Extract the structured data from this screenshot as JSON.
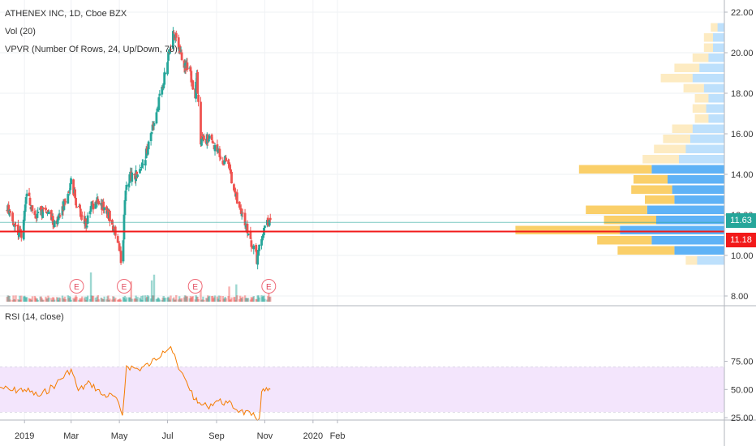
{
  "legend": {
    "symbol": "ATHENEX INC, 1D, Cboe BZX",
    "volume": "Vol (20)",
    "vpvr": "VPVR (Number Of Rows, 24, Up/Down, 70)",
    "rsi": "RSI (14, close)"
  },
  "price_tags": {
    "last": "11.63",
    "line": "11.18"
  },
  "colors": {
    "up": "#26a69a",
    "down": "#ef5350",
    "hline": "#f21a1a",
    "last_tag": "#26a69a",
    "line_tag": "#f21a1a",
    "rsi_line": "#f57c00",
    "rsi_band": "#f3e5fc",
    "vp_up": "#42a5f5",
    "vp_down": "#f9c74f"
  },
  "chart_data": [
    {
      "type": "candlestick",
      "title": "ATHENEX INC, 1D, Cboe BZX",
      "x_ticks": [
        "2019",
        "Mar",
        "May",
        "Jul",
        "Sep",
        "Nov",
        "2020",
        "Feb"
      ],
      "y_ticks": [
        "8.00",
        "10.00",
        "12.00",
        "14.00",
        "16.00",
        "18.00",
        "20.00",
        "22.00"
      ],
      "ylim": [
        7.8,
        22.6
      ],
      "horizontal_line": 11.18,
      "last_price": 11.63,
      "earnings_markers": [
        "E",
        "E",
        "E",
        "E"
      ],
      "price_path": [
        [
          "2018-12-10",
          12.3
        ],
        [
          "2018-12-20",
          11.4
        ],
        [
          "2018-12-28",
          10.9
        ],
        [
          "2019-01-03",
          13.0
        ],
        [
          "2019-01-15",
          12.0
        ],
        [
          "2019-01-28",
          12.3
        ],
        [
          "2019-02-10",
          11.4
        ],
        [
          "2019-02-22",
          12.8
        ],
        [
          "2019-03-01",
          13.6
        ],
        [
          "2019-03-10",
          12.3
        ],
        [
          "2019-03-20",
          11.6
        ],
        [
          "2019-03-28",
          12.4
        ],
        [
          "2019-04-05",
          12.7
        ],
        [
          "2019-04-18",
          12.0
        ],
        [
          "2019-04-25",
          11.2
        ],
        [
          "2019-05-02",
          10.0
        ],
        [
          "2019-05-05",
          9.5
        ],
        [
          "2019-05-08",
          12.9
        ],
        [
          "2019-05-14",
          13.9
        ],
        [
          "2019-05-28",
          14.0
        ],
        [
          "2019-06-10",
          16.0
        ],
        [
          "2019-06-22",
          18.0
        ],
        [
          "2019-07-03",
          20.0
        ],
        [
          "2019-07-08",
          21.0
        ],
        [
          "2019-07-14",
          20.6
        ],
        [
          "2019-07-20",
          19.5
        ],
        [
          "2019-07-30",
          19.0
        ],
        [
          "2019-08-05",
          17.7
        ],
        [
          "2019-08-07",
          18.9
        ],
        [
          "2019-08-12",
          15.7
        ],
        [
          "2019-08-22",
          15.8
        ],
        [
          "2019-09-01",
          15.1
        ],
        [
          "2019-09-15",
          14.5
        ],
        [
          "2019-09-25",
          13.0
        ],
        [
          "2019-10-08",
          11.5
        ],
        [
          "2019-10-18",
          10.3
        ],
        [
          "2019-10-22",
          9.8
        ],
        [
          "2019-10-28",
          11.0
        ],
        [
          "2019-11-05",
          11.7
        ],
        [
          "2019-11-08",
          11.63
        ]
      ]
    },
    {
      "type": "line",
      "title": "RSI (14, close)",
      "y_ticks": [
        "25.00",
        "50.00",
        "75.00"
      ],
      "ylim": [
        16,
        96
      ],
      "band": [
        30,
        70
      ],
      "x": [
        "2018-12-01",
        "2018-12-15",
        "2019-01-01",
        "2019-01-20",
        "2019-02-10",
        "2019-03-01",
        "2019-03-10",
        "2019-03-25",
        "2019-04-10",
        "2019-04-25",
        "2019-05-05",
        "2019-05-10",
        "2019-05-25",
        "2019-06-10",
        "2019-06-25",
        "2019-07-05",
        "2019-07-15",
        "2019-07-25",
        "2019-08-05",
        "2019-08-08",
        "2019-08-20",
        "2019-09-01",
        "2019-09-15",
        "2019-10-01",
        "2019-10-15",
        "2019-10-25",
        "2019-10-28",
        "2019-11-05",
        "2019-11-08"
      ],
      "values": [
        52,
        49,
        50,
        44,
        55,
        68,
        49,
        56,
        45,
        44,
        27,
        71,
        68,
        73,
        84,
        88,
        68,
        57,
        41,
        38,
        35,
        40,
        38,
        31,
        27,
        24,
        48,
        49,
        50
      ]
    },
    {
      "type": "volume_profile",
      "title": "VPVR (Number Of Rows, 24, Up/Down, 70)",
      "price_bins": [
        9.5,
        10.0,
        10.5,
        11.0,
        11.5,
        12.0,
        12.5,
        13.0,
        13.5,
        14.0,
        14.5,
        15.0,
        15.5,
        16.0,
        16.5,
        17.0,
        17.5,
        18.0,
        18.5,
        19.0,
        19.5,
        20.0,
        20.5,
        21.0
      ],
      "up": [
        1.2,
        2.2,
        3.2,
        4.6,
        3.0,
        3.4,
        2.2,
        2.3,
        2.5,
        3.2,
        2.0,
        1.7,
        1.5,
        1.4,
        0.7,
        0.8,
        0.7,
        0.9,
        1.4,
        1.1,
        0.7,
        0.5,
        0.5,
        0.3
      ],
      "down": [
        0.5,
        2.5,
        2.4,
        4.6,
        2.3,
        2.7,
        1.3,
        1.8,
        1.5,
        3.2,
        1.6,
        1.4,
        1.2,
        0.9,
        0.6,
        0.6,
        0.6,
        0.9,
        1.4,
        1.1,
        0.7,
        0.4,
        0.4,
        0.3
      ]
    }
  ]
}
